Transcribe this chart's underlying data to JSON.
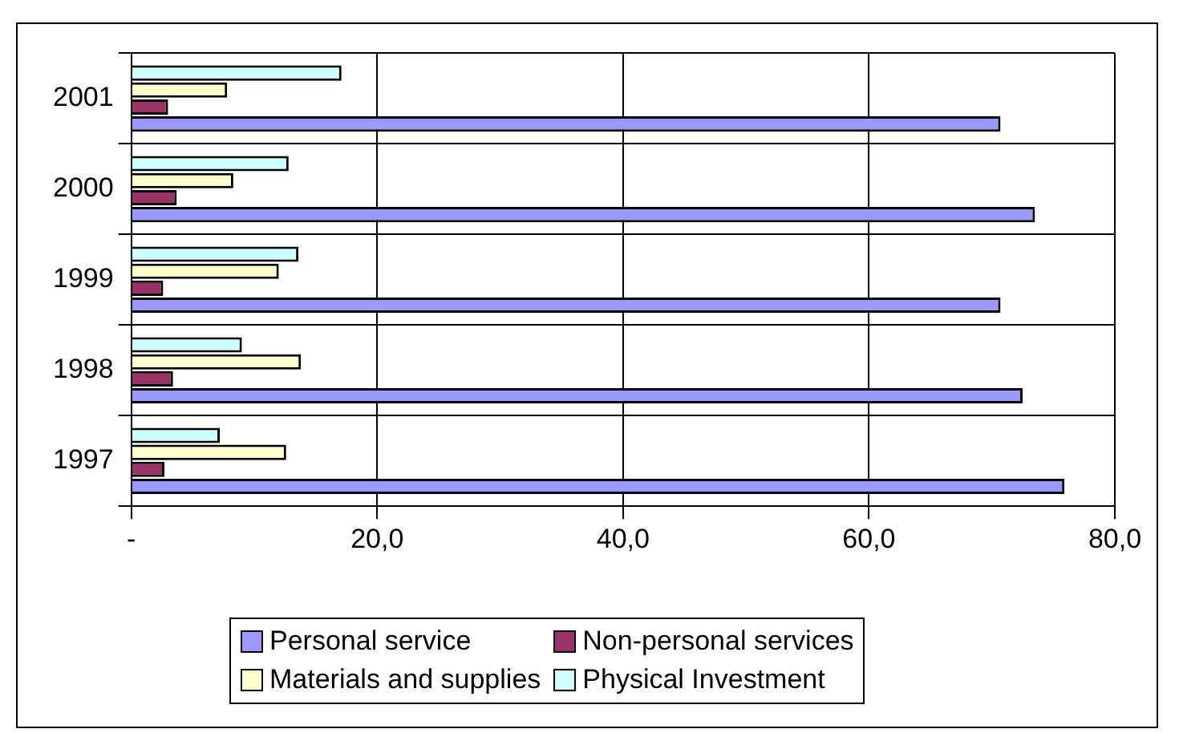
{
  "chart_data": {
    "type": "bar",
    "orientation": "horizontal",
    "categories": [
      "2001",
      "2000",
      "1999",
      "1998",
      "1997"
    ],
    "series": [
      {
        "name": "Personal service",
        "color": "#9999ff",
        "values": [
          70.7,
          73.5,
          70.7,
          72.5,
          75.9
        ]
      },
      {
        "name": "Non-personal services",
        "color": "#993366",
        "values": [
          3.0,
          3.7,
          2.6,
          3.4,
          2.7
        ]
      },
      {
        "name": "Materials and supplies",
        "color": "#ffffcc",
        "values": [
          7.8,
          8.3,
          12.0,
          13.8,
          12.6
        ]
      },
      {
        "name": "Physical Investment",
        "color": "#ccffff",
        "values": [
          17.1,
          12.8,
          13.6,
          9.0,
          7.2
        ]
      }
    ],
    "xlim": [
      0,
      80
    ],
    "xticks": [
      {
        "value": 0,
        "label": "-"
      },
      {
        "value": 20,
        "label": "20,0"
      },
      {
        "value": 40,
        "label": "40,0"
      },
      {
        "value": 60,
        "label": "60,0"
      },
      {
        "value": 80,
        "label": "80,0"
      }
    ],
    "grid": true,
    "legend": "bottom"
  }
}
